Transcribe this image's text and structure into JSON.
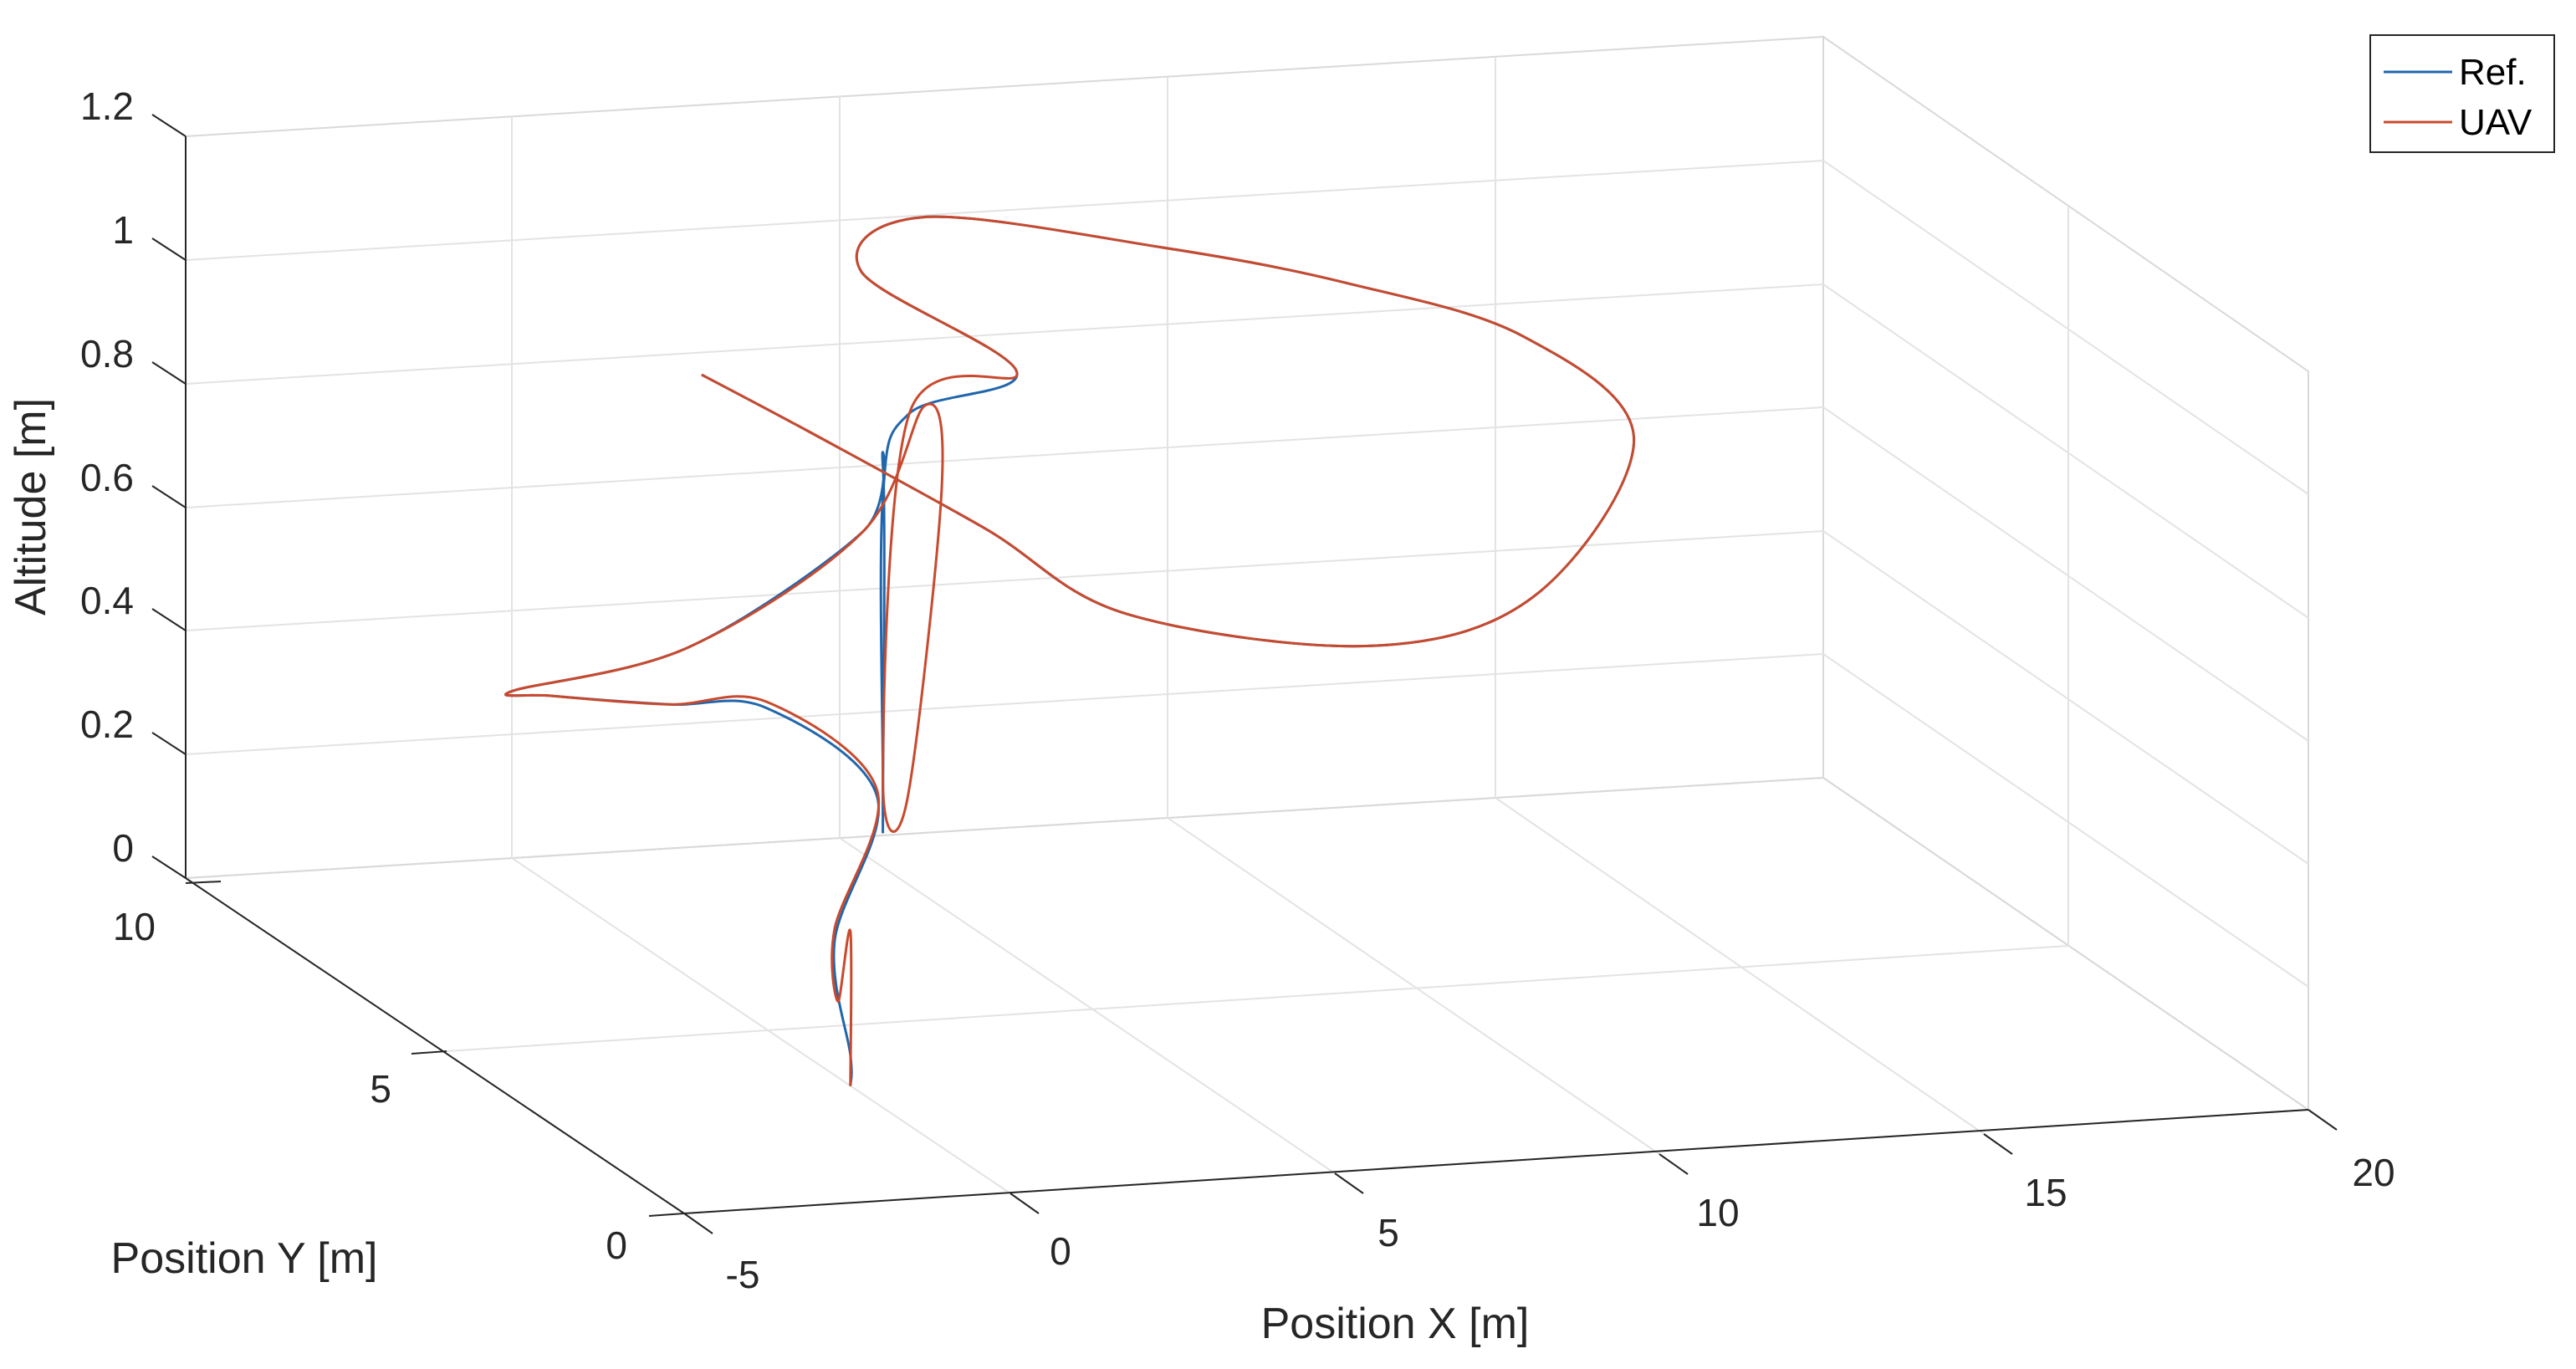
{
  "chart_data": {
    "type": "line",
    "projection": "3d",
    "title": "",
    "xlabel": "Position X [m]",
    "ylabel": "Position Y [m]",
    "zlabel": "Altitude [m]",
    "xlim": [
      -5,
      20
    ],
    "ylim": [
      0,
      11
    ],
    "zlim": [
      0,
      1.2
    ],
    "xticks": [
      "-5",
      "0",
      "5",
      "10",
      "15",
      "20"
    ],
    "yticks": [
      "0",
      "5",
      "10"
    ],
    "zticks": [
      "0",
      "0.2",
      "0.4",
      "0.6",
      "0.8",
      "1",
      "1.2"
    ],
    "grid": true,
    "legend_position": "top-right",
    "series": [
      {
        "name": "Ref.",
        "color": "#2166ac",
        "x": [
          0,
          0,
          1.5,
          3.2,
          2.2,
          0,
          -2.5,
          -4.5,
          -3.2,
          -0.5,
          0.5,
          0.5,
          0.5,
          0.5,
          3.0,
          5.0,
          4.0,
          6.0,
          9.0,
          11.5,
          13.5,
          14.5,
          12.0,
          9.5,
          6.0,
          4.5,
          2.5,
          0.5
        ],
        "y": [
          3.5,
          3.5,
          6.0,
          7.5,
          8.5,
          7.5,
          6.5,
          4.5,
          2.5,
          2.5,
          3.5,
          3.5,
          3.5,
          3.5,
          6.5,
          7.0,
          9.0,
          10.5,
          9.5,
          9.0,
          8.0,
          7.0,
          5.5,
          5.5,
          6.0,
          7.0,
          8.0,
          7.5
        ],
        "z": [
          0,
          0.05,
          0.1,
          0.25,
          0.35,
          0.42,
          0.5,
          0.62,
          0.78,
          0.95,
          1.0,
          0.45,
          0.5,
          0.95,
          0.92,
          0.95,
          1.02,
          1.02,
          1.0,
          0.95,
          0.9,
          0.78,
          0.62,
          0.55,
          0.6,
          0.7,
          0.82,
          0.95
        ]
      },
      {
        "name": "UAV",
        "color": "#c84a2e",
        "x": [
          0,
          0,
          0.3,
          1.5,
          3.2,
          2.2,
          0,
          -2.5,
          -4.5,
          -3.2,
          -0.5,
          0.8,
          1.2,
          0.8,
          0.5,
          3.0,
          5.0,
          4.0,
          6.0,
          9.0,
          11.5,
          13.5,
          14.5,
          12.0,
          9.5,
          6.0,
          4.5,
          2.5,
          0.5
        ],
        "y": [
          3.5,
          3.5,
          4.2,
          6.0,
          7.5,
          8.5,
          7.5,
          6.5,
          4.5,
          2.5,
          2.5,
          3.0,
          3.2,
          3.4,
          3.5,
          6.5,
          7.0,
          9.0,
          10.5,
          9.5,
          9.0,
          8.0,
          7.0,
          5.5,
          5.5,
          6.0,
          7.0,
          8.0,
          7.5
        ],
        "z": [
          0,
          0.25,
          0.1,
          0.12,
          0.26,
          0.36,
          0.42,
          0.5,
          0.62,
          0.78,
          0.95,
          1.12,
          0.98,
          0.46,
          0.5,
          0.92,
          0.95,
          1.02,
          1.02,
          1.0,
          0.95,
          0.9,
          0.78,
          0.62,
          0.55,
          0.6,
          0.7,
          0.82,
          0.95
        ]
      }
    ]
  }
}
